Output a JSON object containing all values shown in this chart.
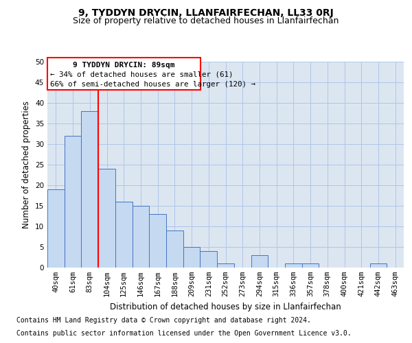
{
  "title": "9, TYDDYN DRYCIN, LLANFAIRFECHAN, LL33 0RJ",
  "subtitle": "Size of property relative to detached houses in Llanfairfechan",
  "xlabel": "Distribution of detached houses by size in Llanfairfechan",
  "ylabel": "Number of detached properties",
  "categories": [
    "40sqm",
    "61sqm",
    "83sqm",
    "104sqm",
    "125sqm",
    "146sqm",
    "167sqm",
    "188sqm",
    "209sqm",
    "231sqm",
    "252sqm",
    "273sqm",
    "294sqm",
    "315sqm",
    "336sqm",
    "357sqm",
    "378sqm",
    "400sqm",
    "421sqm",
    "442sqm",
    "463sqm"
  ],
  "values": [
    19,
    32,
    38,
    24,
    16,
    15,
    13,
    9,
    5,
    4,
    1,
    0,
    3,
    0,
    1,
    1,
    0,
    0,
    0,
    1,
    0
  ],
  "bar_color": "#c5d9f1",
  "bar_edge_color": "#4472c4",
  "grid_color": "#aec6e8",
  "background_color": "#dce6f1",
  "fig_background": "#ffffff",
  "red_line_x": 2.5,
  "annotation_box_text": [
    "9 TYDDYN DRYCIN: 89sqm",
    "← 34% of detached houses are smaller (61)",
    "66% of semi-detached houses are larger (120) →"
  ],
  "footer_line1": "Contains HM Land Registry data © Crown copyright and database right 2024.",
  "footer_line2": "Contains public sector information licensed under the Open Government Licence v3.0.",
  "ylim": [
    0,
    50
  ],
  "yticks": [
    0,
    5,
    10,
    15,
    20,
    25,
    30,
    35,
    40,
    45,
    50
  ],
  "title_fontsize": 10,
  "subtitle_fontsize": 9,
  "xlabel_fontsize": 8.5,
  "ylabel_fontsize": 8.5,
  "tick_fontsize": 7.5,
  "footer_fontsize": 7
}
